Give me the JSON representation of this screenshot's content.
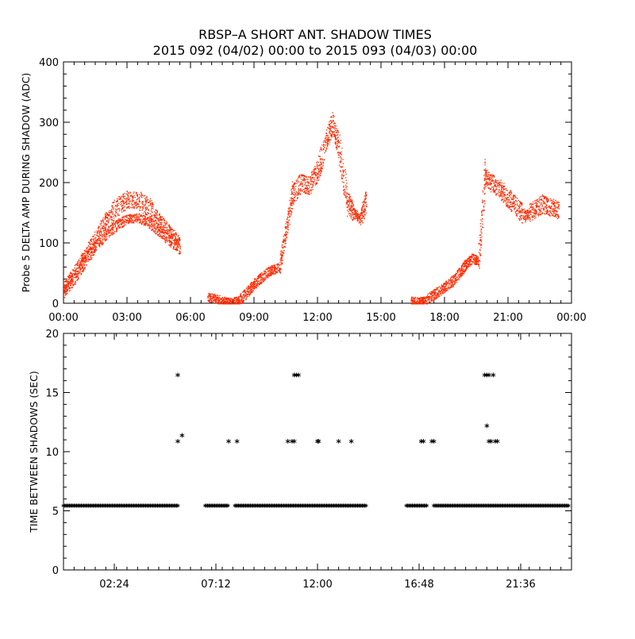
{
  "title": "RBSP–A SHORT ANT. SHADOW TIMES",
  "subtitle": "2015 092 (04/02) 00:00 to 2015 093 (04/03) 00:00",
  "chart_data": [
    {
      "type": "scatter",
      "ylabel": "Probe 5 DELTA AMP DURING SHADOW (ADC)",
      "xlabel": "",
      "x_unit": "hours",
      "xlim": [
        0,
        24
      ],
      "ylim": [
        0,
        400
      ],
      "xtick_values": [
        0,
        3,
        6,
        9,
        12,
        15,
        18,
        21,
        24
      ],
      "xticks": [
        "00:00",
        "03:00",
        "06:00",
        "09:00",
        "12:00",
        "15:00",
        "18:00",
        "21:00",
        "00:00"
      ],
      "yticks": [
        0,
        100,
        200,
        300,
        400
      ],
      "color": "#ff2a00",
      "series": [
        {
          "x": [
            0.0,
            0.5,
            1.0,
            1.5,
            2.0,
            2.5,
            3.0,
            3.5,
            4.0,
            4.5,
            5.0,
            5.5
          ],
          "y": [
            25,
            50,
            80,
            110,
            140,
            160,
            172,
            172,
            160,
            140,
            120,
            100
          ]
        },
        {
          "x": [
            0.0,
            0.5,
            1.0,
            1.5,
            2.0,
            2.5,
            3.0,
            3.5,
            4.0,
            4.5,
            5.0,
            5.5
          ],
          "y": [
            20,
            42,
            70,
            95,
            115,
            130,
            140,
            142,
            135,
            120,
            105,
            90
          ]
        },
        {
          "x": [
            6.8,
            7.2,
            7.6,
            7.9,
            8.3,
            8.7,
            9.0,
            9.4,
            9.8,
            10.2,
            10.5,
            10.8,
            11.2,
            11.6,
            12.0,
            12.4,
            12.7,
            13.0,
            13.4,
            13.7,
            14.0,
            14.3
          ],
          "y": [
            10,
            8,
            3,
            3,
            5,
            20,
            32,
            45,
            55,
            60,
            120,
            180,
            200,
            195,
            220,
            270,
            300,
            260,
            170,
            150,
            140,
            170
          ]
        },
        {
          "x": [
            16.4,
            16.8,
            17.1,
            17.5,
            17.9,
            18.3,
            18.7,
            19.0,
            19.3,
            19.6,
            19.9,
            20.2,
            20.6,
            21.0,
            21.4,
            21.8,
            22.2,
            22.6,
            23.0,
            23.4
          ],
          "y": [
            5,
            2,
            5,
            15,
            25,
            35,
            50,
            65,
            75,
            70,
            210,
            200,
            190,
            175,
            160,
            145,
            155,
            165,
            160,
            155
          ]
        }
      ]
    },
    {
      "type": "scatter",
      "ylabel": "TIME BETWEEN SHADOWS (SEC)",
      "xlabel": "",
      "x_unit": "hours",
      "xlim": [
        0,
        24
      ],
      "ylim": [
        0,
        20
      ],
      "xtick_values": [
        2.4,
        7.2,
        12.0,
        16.8,
        21.6
      ],
      "xticks": [
        "02:24",
        "07:12",
        "12:00",
        "16:48",
        "21:36"
      ],
      "yticks": [
        0,
        5,
        10,
        15,
        20
      ],
      "color": "#000000",
      "marker": "*",
      "baseline": {
        "y": 5.4,
        "x_ranges": [
          [
            0.0,
            5.4
          ],
          [
            6.7,
            7.8
          ],
          [
            8.1,
            14.3
          ],
          [
            16.2,
            17.2
          ],
          [
            17.5,
            23.9
          ]
        ]
      },
      "points": {
        "x": [
          5.4,
          5.4,
          5.6,
          7.8,
          8.2,
          10.6,
          10.8,
          10.9,
          11.0,
          10.9,
          11.1,
          12.0,
          12.05,
          13.0,
          13.6,
          16.9,
          17.0,
          17.4,
          17.5,
          19.9,
          20.0,
          20.1,
          20.3,
          20.0,
          20.1,
          20.2,
          20.4,
          20.5
        ],
        "y": [
          16.4,
          10.8,
          11.3,
          10.8,
          10.8,
          10.8,
          10.8,
          10.8,
          16.4,
          16.4,
          16.4,
          10.8,
          10.8,
          10.8,
          10.8,
          10.8,
          10.8,
          10.8,
          10.8,
          16.4,
          16.4,
          16.4,
          16.4,
          12.1,
          10.8,
          10.8,
          10.8,
          10.8
        ]
      }
    }
  ]
}
